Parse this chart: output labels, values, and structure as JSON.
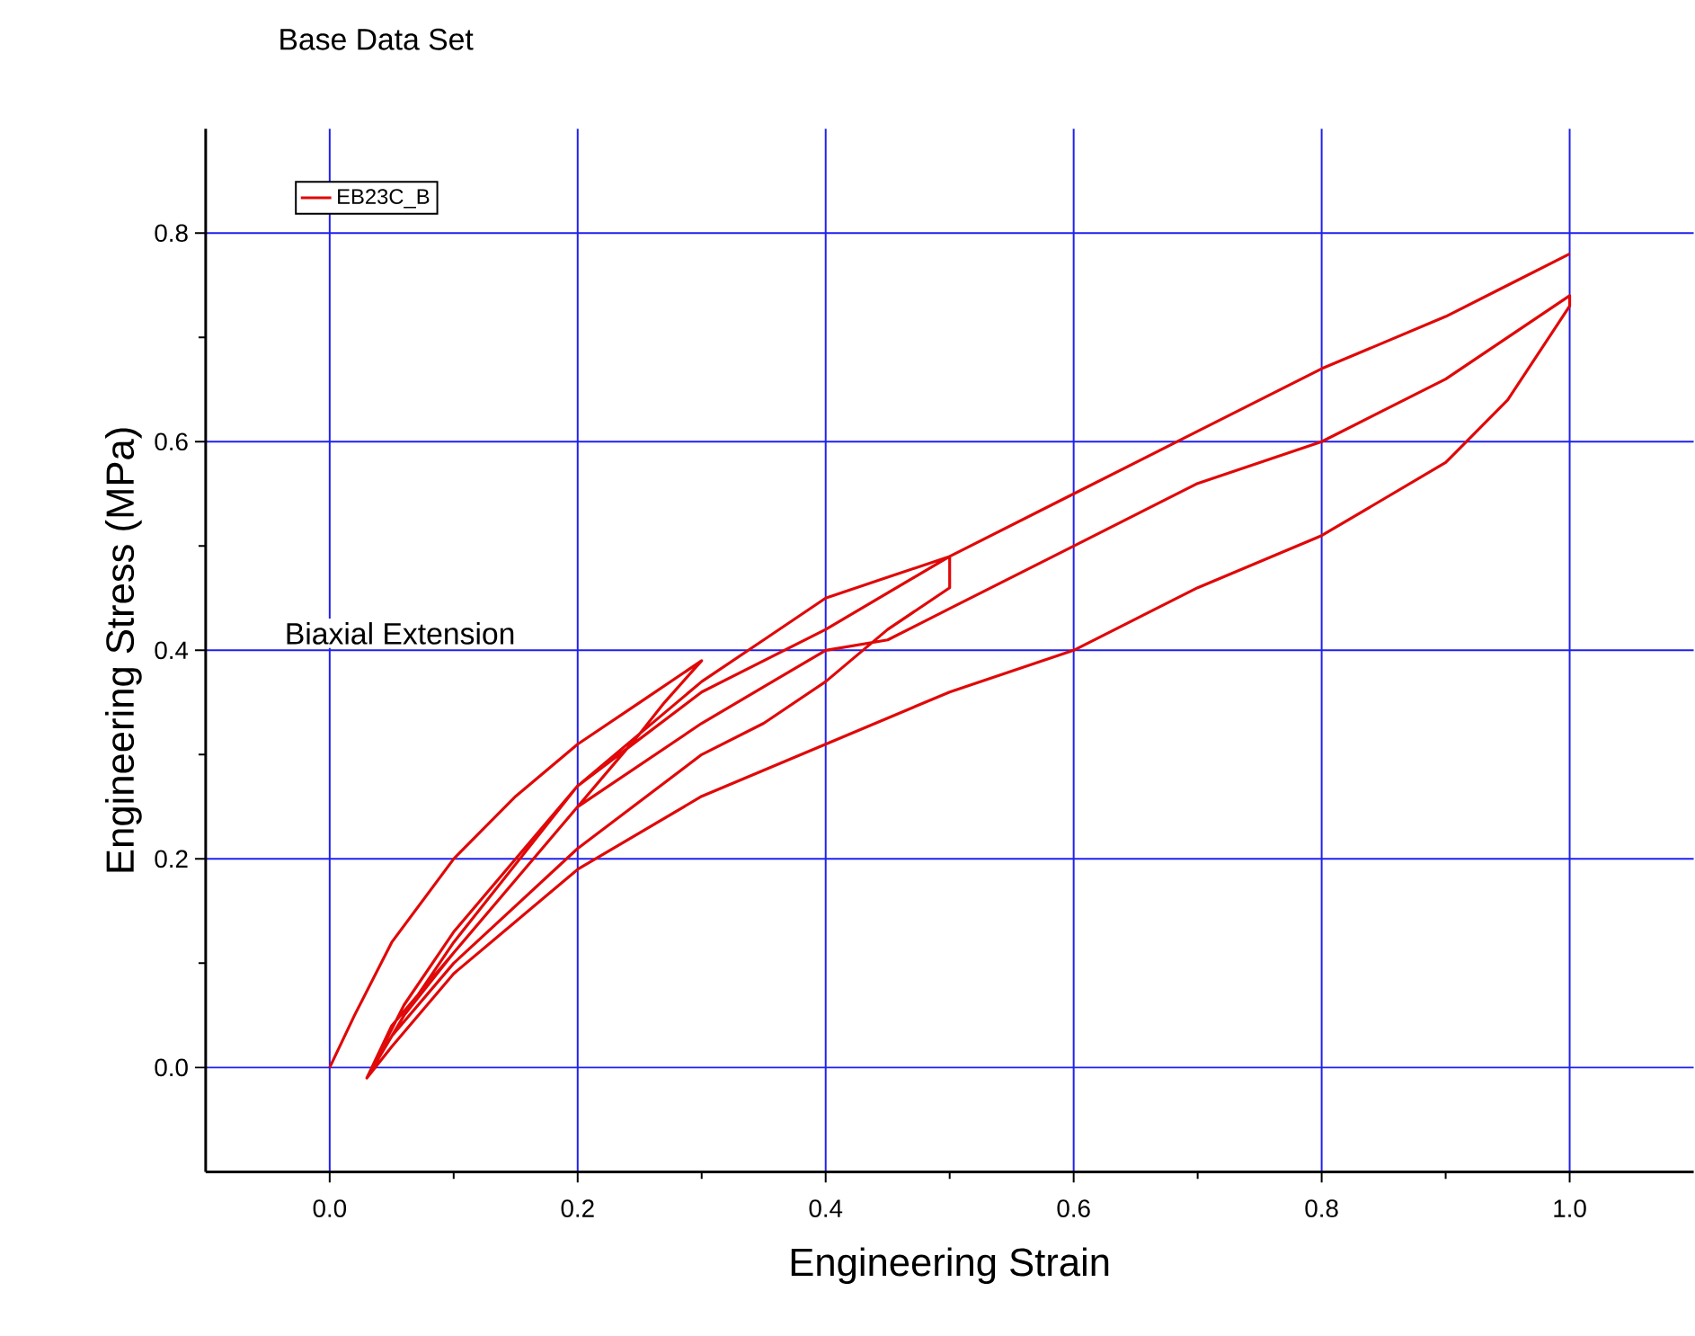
{
  "chart_data": {
    "type": "line",
    "title": "Base Data Set",
    "xlabel": "Engineering Strain",
    "ylabel": "Engineering Stress (MPa)",
    "annotations": [
      "Biaxial Extension"
    ],
    "xlim": [
      -0.1,
      1.1
    ],
    "ylim": [
      -0.1,
      0.9
    ],
    "xticks": [
      {
        "value": 0,
        "label": "0.0"
      },
      {
        "value": 0.2,
        "label": "0.2"
      },
      {
        "value": 0.4,
        "label": "0.4"
      },
      {
        "value": 0.6,
        "label": "0.6"
      },
      {
        "value": 0.8,
        "label": "0.8"
      },
      {
        "value": 1,
        "label": "1.0"
      }
    ],
    "yticks": [
      {
        "value": 0,
        "label": "0.0"
      },
      {
        "value": 0.2,
        "label": "0.2"
      },
      {
        "value": 0.4,
        "label": "0.4"
      },
      {
        "value": 0.6,
        "label": "0.6"
      },
      {
        "value": 0.8,
        "label": "0.8"
      }
    ],
    "grid": true,
    "legend": "top left",
    "marker": "none",
    "line_style": "solid",
    "series": [
      {
        "name": "EB23C_B",
        "color": "#e00808",
        "x": [
          0,
          0.02,
          0.05,
          0.1,
          0.15,
          0.2,
          0.25,
          0.3,
          0.27,
          0.25,
          0.2,
          0.15,
          0.1,
          0.05,
          0.03,
          0.06,
          0.1,
          0.15,
          0.2,
          0.25,
          0.3,
          0.35,
          0.4,
          0.45,
          0.5,
          0.5,
          0.45,
          0.4,
          0.35,
          0.3,
          0.2,
          0.1,
          0.05,
          0.03,
          0.06,
          0.1,
          0.2,
          0.3,
          0.4,
          0.45,
          0.5,
          0.6,
          0.7,
          0.8,
          0.9,
          1.0,
          1.0,
          0.95,
          0.9,
          0.8,
          0.7,
          0.6,
          0.5,
          0.4,
          0.3,
          0.2,
          0.15,
          0.1,
          0.05,
          0.03,
          0.06,
          0.1,
          0.2,
          0.3,
          0.4,
          0.5,
          0.6,
          0.7,
          0.8,
          0.9,
          0.95,
          1.0
        ],
        "values": [
          0,
          0.05,
          0.12,
          0.2,
          0.26,
          0.31,
          0.35,
          0.39,
          0.35,
          0.32,
          0.25,
          0.18,
          0.11,
          0.04,
          -0.01,
          0.06,
          0.13,
          0.2,
          0.27,
          0.32,
          0.37,
          0.41,
          0.45,
          0.47,
          0.49,
          0.46,
          0.42,
          0.37,
          0.33,
          0.3,
          0.21,
          0.1,
          0.03,
          -0.01,
          0.05,
          0.11,
          0.25,
          0.33,
          0.4,
          0.41,
          0.44,
          0.5,
          0.56,
          0.6,
          0.66,
          0.74,
          0.73,
          0.64,
          0.58,
          0.51,
          0.46,
          0.4,
          0.36,
          0.31,
          0.26,
          0.19,
          0.14,
          0.09,
          0.02,
          -0.01,
          0.05,
          0.12,
          0.27,
          0.36,
          0.42,
          0.49,
          0.55,
          0.61,
          0.67,
          0.72,
          0.75,
          0.78
        ]
      }
    ]
  }
}
